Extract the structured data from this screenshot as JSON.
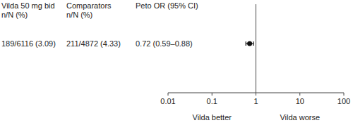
{
  "chart_data": {
    "type": "forest",
    "column_headers": [
      [
        "Vilda 50 mg bid",
        "n/N (%)"
      ],
      [
        "Comparators",
        "n/N (%)"
      ],
      [
        "Peto OR (95% CI)"
      ]
    ],
    "rows": [
      [
        "189/6116 (3.09)",
        "211/4872 (4.33)",
        "0.72 (0.59–0.88)"
      ]
    ],
    "values": [
      0.72
    ],
    "ci_low": [
      0.59
    ],
    "ci_high": [
      0.88
    ],
    "color": "#111111",
    "log": "x",
    "xlim": [
      0.01,
      100
    ],
    "xticks": [
      0.01,
      0.1,
      1,
      10,
      100
    ],
    "reference_line": 1,
    "annotations": [
      "Vilda better",
      "Vilda worse"
    ]
  }
}
